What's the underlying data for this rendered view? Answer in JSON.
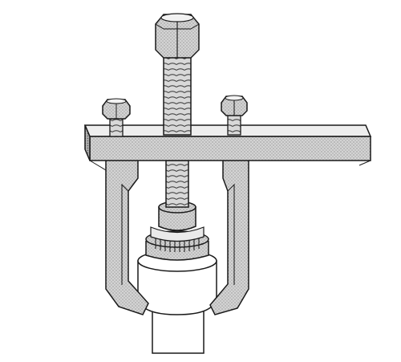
{
  "illustration": {
    "subject": "puller-tool-on-shaft",
    "colors": {
      "line": "#1a1a1a",
      "paper": "#ffffff",
      "steel": "#cfcfcf",
      "steel_dark": "#a8a8a8",
      "shaft": "#ffffff"
    },
    "parts": [
      {
        "id": "forcing-screw",
        "label": ""
      },
      {
        "id": "puller-bar",
        "label": ""
      },
      {
        "id": "left-bolt",
        "label": ""
      },
      {
        "id": "right-bolt",
        "label": ""
      },
      {
        "id": "left-jaw",
        "label": ""
      },
      {
        "id": "right-jaw",
        "label": ""
      },
      {
        "id": "bearing",
        "label": ""
      },
      {
        "id": "shaft",
        "label": ""
      }
    ]
  }
}
